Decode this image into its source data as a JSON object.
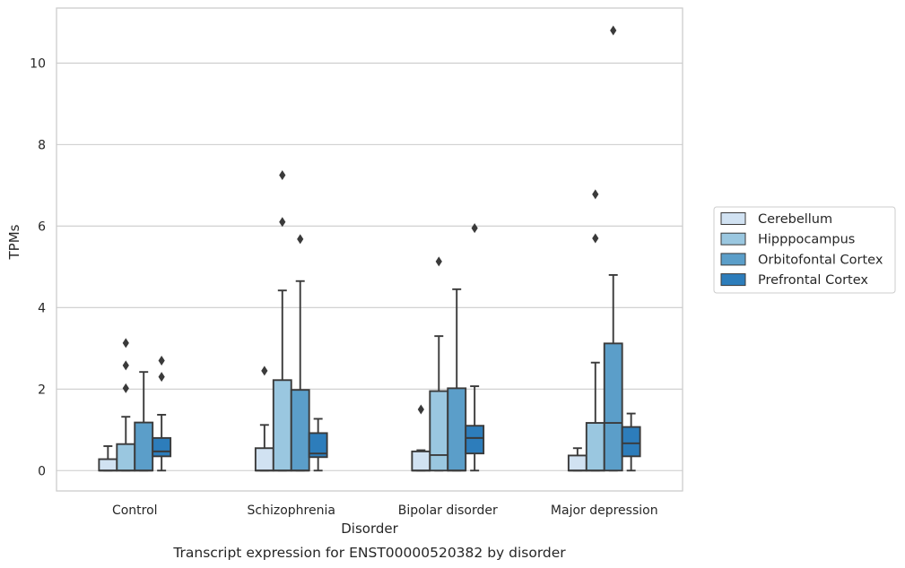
{
  "chart_data": {
    "type": "box",
    "caption": "Transcript expression for ENST00000520382 by disorder",
    "xlabel": "Disorder",
    "ylabel": "TPMs",
    "ylim": [
      -0.5,
      11.35
    ],
    "yticks": [
      0,
      2,
      4,
      6,
      8,
      10
    ],
    "grid": true,
    "legend_position": "right",
    "categories": [
      "Control",
      "Schizophrenia",
      "Bipolar disorder",
      "Major depression"
    ],
    "series": [
      {
        "name": "Cerebellum",
        "color": "#d1e2f2",
        "boxes": [
          {
            "whisker_low": 0,
            "q1": 0,
            "median": 0,
            "q3": 0.28,
            "whisker_high": 0.6,
            "outliers": []
          },
          {
            "whisker_low": 0,
            "q1": 0,
            "median": 0,
            "q3": 0.55,
            "whisker_high": 1.12,
            "outliers": [
              2.45
            ]
          },
          {
            "whisker_low": 0,
            "q1": 0,
            "median": 0,
            "q3": 0.47,
            "whisker_high": 0.5,
            "outliers": [
              1.5
            ]
          },
          {
            "whisker_low": 0,
            "q1": 0,
            "median": 0,
            "q3": 0.37,
            "whisker_high": 0.55,
            "outliers": []
          }
        ]
      },
      {
        "name": "Hipppocampus",
        "color": "#9ac7e0",
        "boxes": [
          {
            "whisker_low": 0,
            "q1": 0,
            "median": 0,
            "q3": 0.65,
            "whisker_high": 1.32,
            "outliers": [
              2.02,
              2.58,
              3.13
            ]
          },
          {
            "whisker_low": 0,
            "q1": 0,
            "median": 0,
            "q3": 2.22,
            "whisker_high": 4.42,
            "outliers": [
              6.1,
              7.25
            ]
          },
          {
            "whisker_low": 0,
            "q1": 0,
            "median": 0.38,
            "q3": 1.95,
            "whisker_high": 3.3,
            "outliers": [
              5.13
            ]
          },
          {
            "whisker_low": 0,
            "q1": 0,
            "median": 0,
            "q3": 1.17,
            "whisker_high": 2.65,
            "outliers": [
              5.7,
              6.78
            ]
          }
        ]
      },
      {
        "name": "Orbitofontal Cortex",
        "color": "#5b9ec9",
        "boxes": [
          {
            "whisker_low": 0,
            "q1": 0,
            "median": 0,
            "q3": 1.18,
            "whisker_high": 2.42,
            "outliers": []
          },
          {
            "whisker_low": 0,
            "q1": 0,
            "median": 0,
            "q3": 1.98,
            "whisker_high": 4.65,
            "outliers": [
              5.68
            ]
          },
          {
            "whisker_low": 0,
            "q1": 0,
            "median": 0,
            "q3": 2.02,
            "whisker_high": 4.45,
            "outliers": []
          },
          {
            "whisker_low": 0,
            "q1": 0,
            "median": 1.17,
            "q3": 3.12,
            "whisker_high": 4.8,
            "outliers": [
              10.8
            ]
          }
        ]
      },
      {
        "name": "Prefrontal Cortex",
        "color": "#2d7dbb",
        "boxes": [
          {
            "whisker_low": 0,
            "q1": 0.35,
            "median": 0.47,
            "q3": 0.8,
            "whisker_high": 1.37,
            "outliers": [
              2.3,
              2.7
            ]
          },
          {
            "whisker_low": 0,
            "q1": 0.33,
            "median": 0.42,
            "q3": 0.92,
            "whisker_high": 1.27,
            "outliers": []
          },
          {
            "whisker_low": 0,
            "q1": 0.42,
            "median": 0.8,
            "q3": 1.1,
            "whisker_high": 2.07,
            "outliers": [
              5.95
            ]
          },
          {
            "whisker_low": 0,
            "q1": 0.35,
            "median": 0.67,
            "q3": 1.07,
            "whisker_high": 1.4,
            "outliers": []
          }
        ]
      }
    ]
  }
}
